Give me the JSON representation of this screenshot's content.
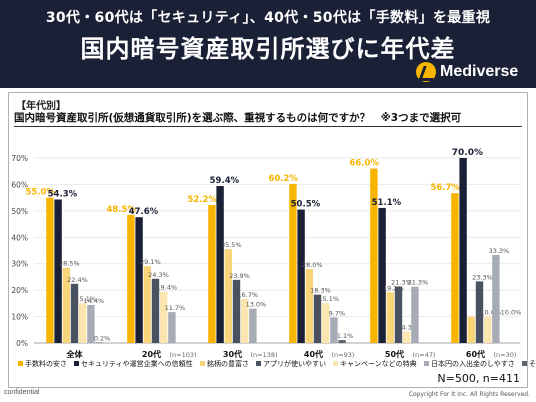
{
  "header": {
    "headline": "30代・60代は「セキュリティ」、40代・50代は「手数料」を最重視",
    "title": "国内暗号資産取引所選びに年代差",
    "logo_text": "Mediverse"
  },
  "panel": {
    "section_label": "【年代別】",
    "question": "国内暗号資産取引所(仮想通貨取引所)を選ぶ際、重視するものは何ですか？　※3つまで選択可"
  },
  "footer": {
    "confidential": "confidential",
    "copyright": "Copyright For It Inc. All Rights Reserved."
  },
  "chart_data": {
    "type": "bar",
    "categories": [
      "全体",
      "20代",
      "30代",
      "40代",
      "50代",
      "60代"
    ],
    "category_n": [
      "",
      "(n=103)",
      "(n=138)",
      "(n=93)",
      "(n=47)",
      "(n=30)"
    ],
    "y_ticks": [
      "0%",
      "10%",
      "20%",
      "30%",
      "40%",
      "50%",
      "60%",
      "70%"
    ],
    "ylim": [
      0,
      70
    ],
    "sample_note": "N=500, n=411",
    "series": [
      {
        "name": "手数料の安さ",
        "color": "#f7b500",
        "values": [
          55.0,
          48.5,
          52.2,
          60.2,
          66.0,
          56.7
        ],
        "labels": [
          "55.0%",
          "48.5%",
          "52.2%",
          "60.2%",
          "66.0%",
          "56.7%"
        ]
      },
      {
        "name": "セキュリティや運営企業への信頼性",
        "color": "#1a2036",
        "values": [
          54.3,
          47.6,
          59.4,
          50.5,
          51.1,
          70.0
        ],
        "labels": [
          "54.3%",
          "47.6%",
          "59.4%",
          "50.5%",
          "51.1%",
          "70.0%"
        ]
      },
      {
        "name": "銘柄の豊富さ",
        "color": "#f9d57a",
        "values": [
          28.5,
          29.1,
          35.5,
          28.0,
          19.2,
          10.0
        ],
        "labels": [
          "28.5%",
          "29.1%",
          "35.5%",
          "28.0%",
          "19.2%",
          ""
        ]
      },
      {
        "name": "アプリが使いやすい",
        "color": "#4a5160",
        "values": [
          22.4,
          24.3,
          23.9,
          18.3,
          21.3,
          23.3
        ],
        "labels": [
          "22.4%",
          "24.3%",
          "23.9%",
          "18.3%",
          "21.3%",
          "23.3%"
        ]
      },
      {
        "name": "キャンペーンなどの特典",
        "color": "#fbe6b0",
        "values": [
          15.1,
          19.4,
          16.7,
          15.1,
          4.3,
          10.0
        ],
        "labels": [
          "15.1%",
          "19.4%",
          "16.7%",
          "15.1%",
          "4.3%",
          "10.0%"
        ]
      },
      {
        "name": "日本円の入出金のしやすさ",
        "color": "#a7abb5",
        "values": [
          14.4,
          11.7,
          13.0,
          9.7,
          21.3,
          33.3
        ],
        "labels": [
          "14.4%",
          "11.7%",
          "13.0%",
          "9.7%",
          "21.3%",
          "33.3%"
        ]
      },
      {
        "name": "その他",
        "color": "#5e6370",
        "values": [
          0.2,
          0,
          0,
          1.1,
          0,
          0
        ],
        "labels": [
          "0.2%",
          "",
          "",
          "1.1%",
          "",
          ""
        ]
      }
    ],
    "extra_labels": [
      {
        "category": 5,
        "text": "10.0%"
      }
    ]
  }
}
